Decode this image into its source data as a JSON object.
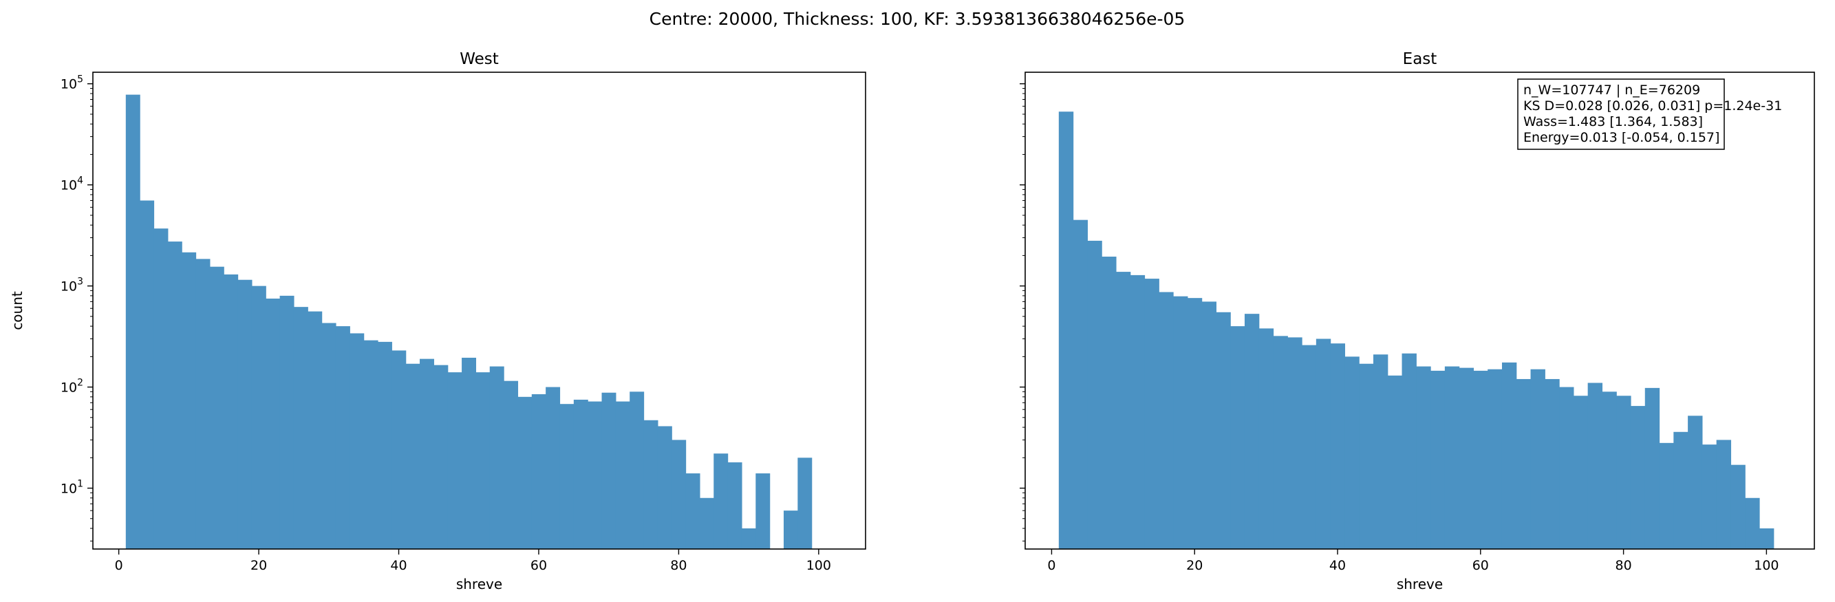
{
  "figure": {
    "suptitle": "Centre: 20000, Thickness: 100, KF: 3.5938136638046256e-05",
    "bar_color": "#4b92c3"
  },
  "chart_data": [
    {
      "type": "bar",
      "title": "West",
      "xlabel": "shreve",
      "ylabel": "count",
      "yscale": "log",
      "xlim": [
        -3.7,
        106.7
      ],
      "ylim": [
        2.5,
        130000
      ],
      "xticks": [
        0,
        20,
        40,
        60,
        80,
        100
      ],
      "yticks": [
        10,
        100,
        1000,
        10000,
        100000
      ],
      "bin_start": 1,
      "bin_width": 2,
      "values": [
        78000,
        7000,
        3700,
        2750,
        2150,
        1850,
        1550,
        1300,
        1150,
        1000,
        750,
        800,
        620,
        560,
        430,
        400,
        340,
        290,
        280,
        230,
        170,
        190,
        165,
        140,
        195,
        140,
        160,
        115,
        80,
        85,
        100,
        68,
        75,
        72,
        88,
        72,
        90,
        47,
        41,
        30,
        14,
        8,
        22,
        18,
        4,
        14,
        0,
        6,
        20
      ]
    },
    {
      "type": "bar",
      "title": "East",
      "xlabel": "shreve",
      "ylabel": "",
      "yscale": "log",
      "xlim": [
        -3.7,
        106.7
      ],
      "ylim": [
        2.5,
        130000
      ],
      "xticks": [
        0,
        20,
        40,
        60,
        80,
        100
      ],
      "yticks": [
        10,
        100,
        1000,
        10000,
        100000
      ],
      "bin_start": 1,
      "bin_width": 2,
      "values": [
        53000,
        4500,
        2800,
        1950,
        1380,
        1280,
        1180,
        870,
        790,
        760,
        700,
        550,
        400,
        530,
        380,
        320,
        310,
        260,
        300,
        270,
        200,
        170,
        210,
        130,
        215,
        160,
        145,
        160,
        155,
        145,
        150,
        175,
        120,
        150,
        120,
        100,
        82,
        110,
        90,
        82,
        65,
        98,
        28,
        36,
        52,
        27,
        30,
        17,
        8,
        4
      ]
    }
  ],
  "stats_box": {
    "lines": [
      "n_W=107747 | n_E=76209",
      "KS D=0.028 [0.026, 0.031]  p=1.24e-31",
      "Wass=1.483 [1.364, 1.583]",
      "Energy=0.013 [-0.054, 0.157]"
    ]
  }
}
